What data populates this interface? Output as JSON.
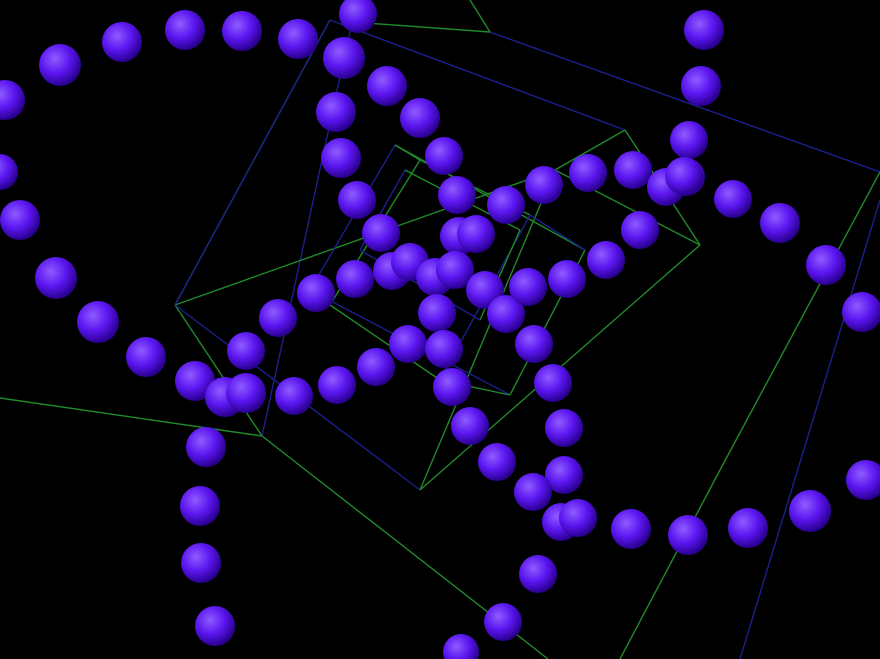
{
  "scene": {
    "background_color": "#000000",
    "sphere_color": "#5b16f0",
    "sphere_highlight_color": "#8f5cff",
    "sphere_shadow_color": "#2a0090",
    "wire_color": "#1f8a2a",
    "wire_secondary_color": "#1b1f8c",
    "objects": [
      "sphere-rings",
      "nested-wireframe-cubes"
    ]
  }
}
